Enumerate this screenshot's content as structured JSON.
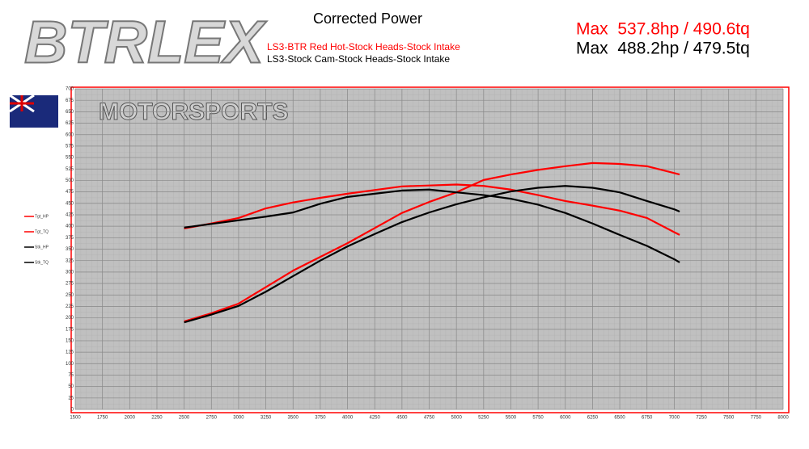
{
  "logo": {
    "brand": "BTRLEX",
    "subtitle": "MOTORSPORTS"
  },
  "chart_data": {
    "type": "line",
    "title": "Corrected Power",
    "subtitles": [
      {
        "text": "LS3-BTR Red Hot-Stock Heads-Stock Intake",
        "color": "#ff0000"
      },
      {
        "text": "LS3-Stock Cam-Stock Heads-Stock Intake",
        "color": "#000000"
      }
    ],
    "annotations": [
      {
        "text": "Max  537.8hp / 490.6tq",
        "color": "#ff0000"
      },
      {
        "text": "Max  488.2hp / 479.5tq",
        "color": "#000000"
      }
    ],
    "x": [
      2500,
      2750,
      3000,
      3250,
      3500,
      3750,
      4000,
      4250,
      4500,
      4750,
      5000,
      5250,
      5500,
      5750,
      6000,
      6250,
      6500,
      6750,
      7000,
      7050
    ],
    "series": [
      {
        "name": "Tgt_HP",
        "color": "#ff0000",
        "values": [
          192,
          210,
          231,
          267,
          303,
          333,
          363,
          396,
          429,
          453,
          474,
          501,
          513,
          523,
          531,
          538,
          536,
          531,
          516,
          513
        ]
      },
      {
        "name": "Tgt_TQ",
        "color": "#ff0000",
        "values": [
          395,
          406,
          418,
          439,
          452,
          462,
          471,
          479,
          487,
          489,
          491,
          488,
          480,
          468,
          455,
          445,
          434,
          418,
          387,
          381
        ]
      },
      {
        "name": "Stk_HP",
        "color": "#000000",
        "values": [
          190,
          207,
          226,
          257,
          291,
          325,
          356,
          383,
          409,
          430,
          448,
          463,
          476,
          484,
          488,
          484,
          474,
          455,
          437,
          432
        ]
      },
      {
        "name": "Stk_TQ",
        "color": "#000000",
        "values": [
          397,
          405,
          413,
          421,
          430,
          449,
          464,
          471,
          478,
          480,
          474,
          468,
          460,
          447,
          429,
          406,
          381,
          357,
          328,
          321
        ]
      }
    ],
    "xlim": [
      1500,
      8000
    ],
    "xticks": [
      1500,
      1750,
      2000,
      2250,
      2500,
      2750,
      3000,
      3250,
      3500,
      3750,
      4000,
      4250,
      4500,
      4750,
      5000,
      5250,
      5500,
      5750,
      6000,
      6250,
      6500,
      6750,
      7000,
      7250,
      7500,
      7750,
      8000
    ],
    "ylim": [
      0,
      700
    ],
    "yticks": [
      0,
      25,
      50,
      75,
      100,
      125,
      150,
      175,
      200,
      225,
      250,
      275,
      300,
      325,
      350,
      375,
      400,
      425,
      450,
      475,
      500,
      525,
      550,
      575,
      600,
      625,
      650,
      675,
      700
    ],
    "grid": true
  }
}
